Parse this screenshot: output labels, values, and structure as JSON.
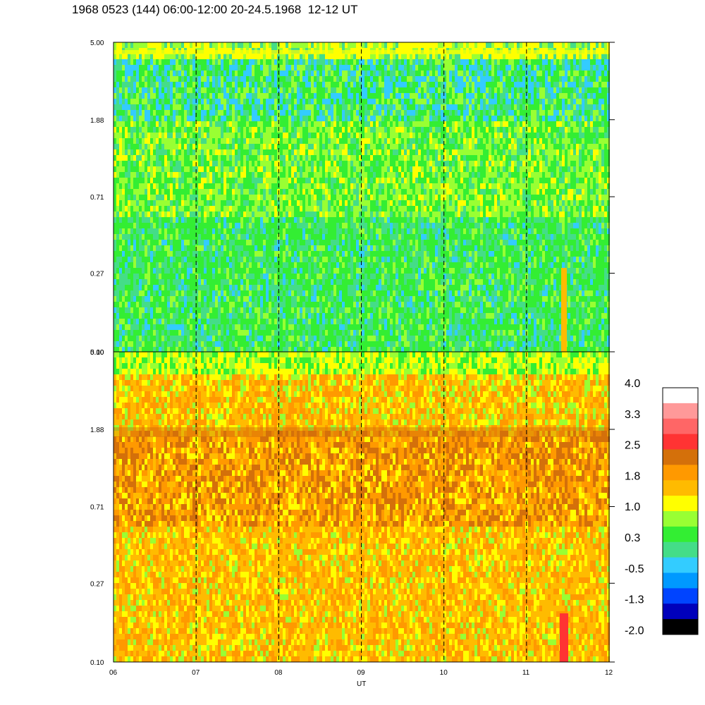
{
  "title": "1968 0523 (144) 06:00-12:00 20-24.5.1968  12-12 UT",
  "chart_data": [
    {
      "type": "heatmap",
      "panel": "top",
      "y_ticks": [
        "5.00",
        "1.88",
        "0.71",
        "0.27",
        "0.10"
      ],
      "x_ticks": [
        "06",
        "07",
        "08",
        "09",
        "10",
        "11",
        "12"
      ],
      "x_range": [
        6,
        12
      ],
      "y_range": [
        0.1,
        5.0
      ],
      "y_scale": "log",
      "dominant_levels": [
        "green",
        "light-green",
        "cyan"
      ]
    },
    {
      "type": "heatmap",
      "panel": "bottom",
      "y_ticks": [
        "5.00",
        "1.88",
        "0.71",
        "0.27",
        "0.10"
      ],
      "x_ticks": [
        "06",
        "07",
        "08",
        "09",
        "10",
        "11",
        "12"
      ],
      "x_range": [
        6,
        12
      ],
      "y_range": [
        0.1,
        5.0
      ],
      "y_scale": "log",
      "xlabel": "UT",
      "dominant_levels": [
        "orange",
        "yellow",
        "dark-orange"
      ]
    }
  ],
  "colorbar": {
    "labels": [
      "4.0",
      "3.3",
      "2.5",
      "1.8",
      "1.0",
      "0.3",
      "-0.5",
      "-1.3",
      "-2.0"
    ],
    "colors": [
      "#ffffff",
      "#ff9999",
      "#ff6666",
      "#ff3333",
      "#d4700a",
      "#ff9900",
      "#ffbb00",
      "#ffff00",
      "#99ff33",
      "#33ee33",
      "#44dd88",
      "#33ccff",
      "#0099ff",
      "#0044ff",
      "#0000bb",
      "#000000"
    ]
  }
}
